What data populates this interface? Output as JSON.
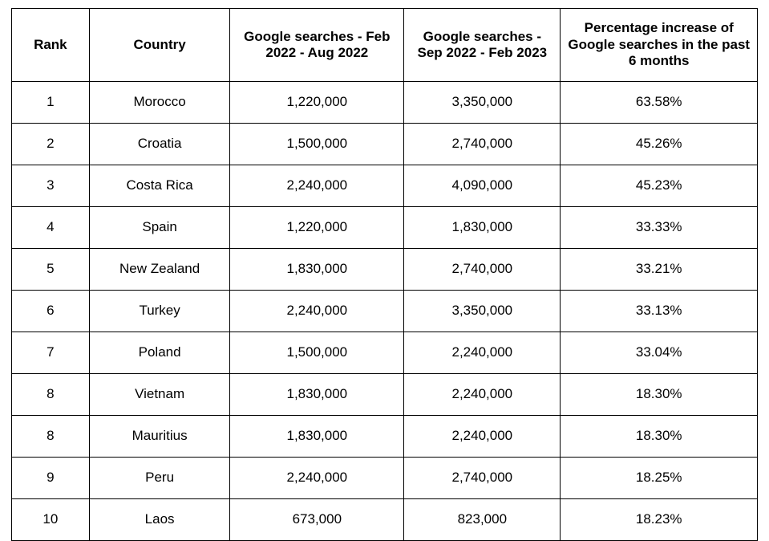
{
  "table": {
    "type": "table",
    "background_color": "#ffffff",
    "border_color": "#000000",
    "text_color": "#000000",
    "font_family": "Arial",
    "header_fontsize": 17,
    "header_fontweight": 700,
    "cell_fontsize": 17,
    "cell_fontweight": 400,
    "alignment": "center",
    "columns": [
      {
        "key": "rank",
        "label": "Rank",
        "width_pct": 10.4
      },
      {
        "key": "country",
        "label": "Country",
        "width_pct": 18.9
      },
      {
        "key": "p1",
        "label": "Google searches - Feb 2022 - Aug 2022",
        "width_pct": 23.3
      },
      {
        "key": "p2",
        "label": "Google searches - Sep 2022 - Feb 2023",
        "width_pct": 21.0
      },
      {
        "key": "pct",
        "label": "Percentage increase of Google searches in the past 6 months",
        "width_pct": 26.4
      }
    ],
    "rows": [
      {
        "rank": "1",
        "country": "Morocco",
        "p1": "1,220,000",
        "p2": "3,350,000",
        "pct": "63.58%"
      },
      {
        "rank": "2",
        "country": "Croatia",
        "p1": "1,500,000",
        "p2": "2,740,000",
        "pct": "45.26%"
      },
      {
        "rank": "3",
        "country": "Costa Rica",
        "p1": "2,240,000",
        "p2": "4,090,000",
        "pct": "45.23%"
      },
      {
        "rank": "4",
        "country": "Spain",
        "p1": "1,220,000",
        "p2": "1,830,000",
        "pct": "33.33%"
      },
      {
        "rank": "5",
        "country": "New Zealand",
        "p1": "1,830,000",
        "p2": "2,740,000",
        "pct": "33.21%"
      },
      {
        "rank": "6",
        "country": "Turkey",
        "p1": "2,240,000",
        "p2": "3,350,000",
        "pct": "33.13%"
      },
      {
        "rank": "7",
        "country": "Poland",
        "p1": "1,500,000",
        "p2": "2,240,000",
        "pct": "33.04%"
      },
      {
        "rank": "8",
        "country": "Vietnam",
        "p1": "1,830,000",
        "p2": "2,240,000",
        "pct": "18.30%"
      },
      {
        "rank": "8",
        "country": "Mauritius",
        "p1": "1,830,000",
        "p2": "2,240,000",
        "pct": "18.30%"
      },
      {
        "rank": "9",
        "country": "Peru",
        "p1": "2,240,000",
        "p2": "2,740,000",
        "pct": "18.25%"
      },
      {
        "rank": "10",
        "country": "Laos",
        "p1": "673,000",
        "p2": "823,000",
        "pct": "18.23%"
      }
    ]
  }
}
